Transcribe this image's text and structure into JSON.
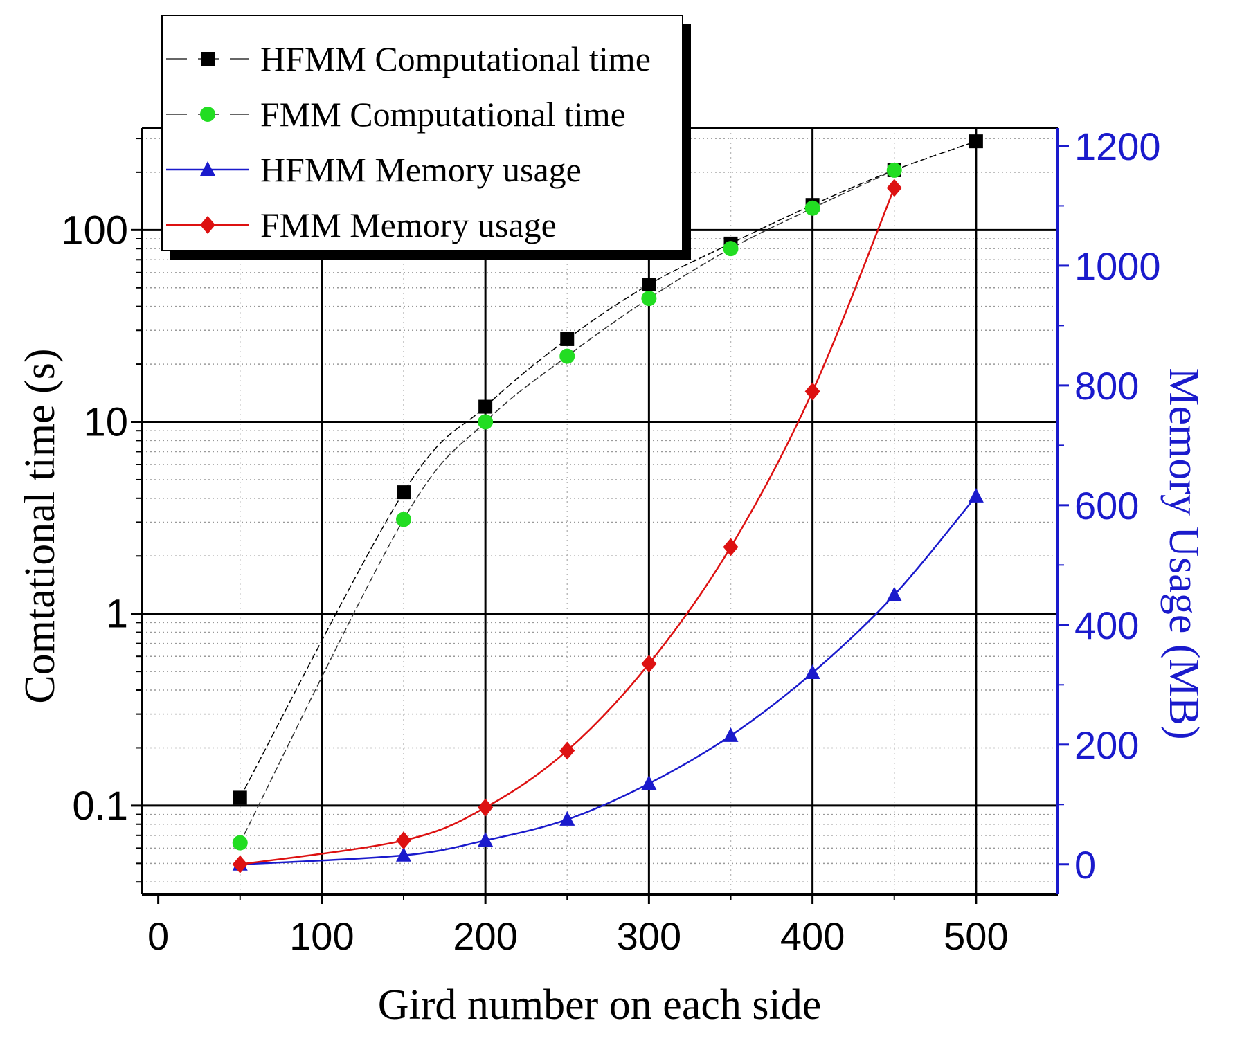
{
  "chart_data": {
    "type": "line",
    "title": "",
    "xlabel": "Gird number on each side",
    "ylabel_left": "Comtational time (s)",
    "ylabel_right": "Memory Usage (MB)",
    "xlim": [
      -10,
      550
    ],
    "ylim_left": [
      0.0345,
      340
    ],
    "y_left_scale": "log",
    "ylim_right": [
      -50,
      1230
    ],
    "x_ticks": [
      0,
      100,
      200,
      300,
      400,
      500
    ],
    "y_left_ticks": [
      {
        "value": 0.1,
        "label": "0.1"
      },
      {
        "value": 1,
        "label": "1"
      },
      {
        "value": 10,
        "label": "10"
      },
      {
        "value": 100,
        "label": "100"
      }
    ],
    "y_right_ticks": [
      0,
      200,
      400,
      600,
      800,
      1000,
      1200
    ],
    "grid": true,
    "legend_position": "top-left",
    "colors": {
      "hfmm_time": "#000000",
      "fmm_time": "#22dd22",
      "hfmm_mem": "#1a1acc",
      "fmm_mem": "#dd1111",
      "right_axis": "#1a1acc"
    },
    "series": [
      {
        "name": "HFMM Computational time",
        "axis": "left",
        "marker": "square",
        "line": "dashed",
        "x": [
          50,
          150,
          200,
          250,
          300,
          350,
          400,
          450,
          500
        ],
        "values": [
          0.11,
          4.3,
          12,
          27,
          52,
          85,
          135,
          205,
          290
        ]
      },
      {
        "name": "FMM Computational time",
        "axis": "left",
        "marker": "circle",
        "line": "dashed",
        "x": [
          50,
          150,
          200,
          250,
          300,
          350,
          400,
          450
        ],
        "values": [
          0.064,
          3.1,
          10,
          22,
          44,
          80,
          130,
          205
        ]
      },
      {
        "name": "HFMM Memory usage",
        "axis": "right",
        "marker": "triangle",
        "line": "solid",
        "x": [
          50,
          150,
          200,
          250,
          300,
          350,
          400,
          450,
          500
        ],
        "values": [
          0,
          15,
          40,
          75,
          135,
          215,
          320,
          450,
          615
        ]
      },
      {
        "name": "FMM Memory usage",
        "axis": "right",
        "marker": "diamond",
        "line": "solid",
        "x": [
          50,
          150,
          200,
          250,
          300,
          350,
          400,
          450
        ],
        "values": [
          0,
          40,
          95,
          190,
          335,
          530,
          790,
          1130
        ]
      }
    ]
  }
}
